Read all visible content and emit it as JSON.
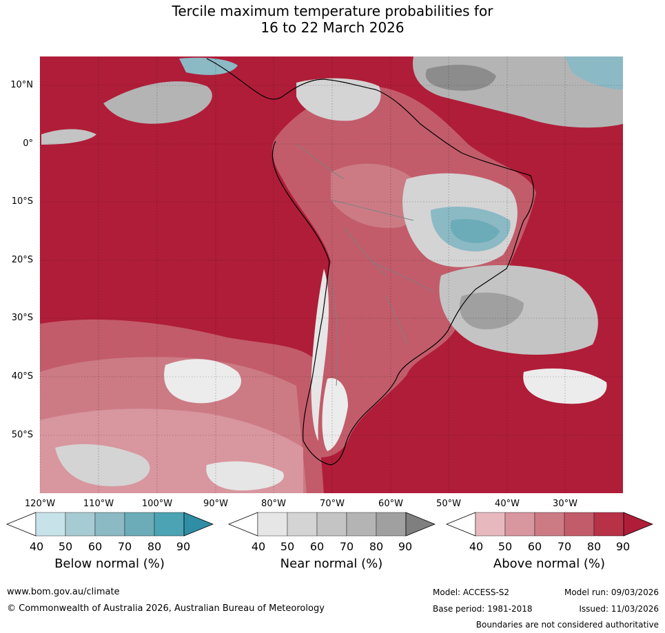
{
  "title": {
    "line1": "Tercile maximum temperature probabilities for",
    "line2": "16 to 22 March 2026"
  },
  "map": {
    "region": "South America",
    "lat_labels": [
      "10°N",
      "0°",
      "10°S",
      "20°S",
      "30°S",
      "40°S",
      "50°S"
    ],
    "lon_labels": [
      "120°W",
      "110°W",
      "100°W",
      "90°W",
      "80°W",
      "70°W",
      "60°W",
      "50°W",
      "40°W",
      "30°W"
    ],
    "grid": true
  },
  "legend": {
    "below": {
      "label": "Below normal (%)",
      "ticks": [
        "40",
        "50",
        "60",
        "70",
        "80",
        "90"
      ],
      "colors": [
        "#ffffff",
        "#c7e2e8",
        "#a7cbd2",
        "#8bb9c4",
        "#6cacb8",
        "#4ba3b3",
        "#2f8ea4"
      ]
    },
    "near": {
      "label": "Near normal (%)",
      "ticks": [
        "40",
        "50",
        "60",
        "70",
        "80",
        "90"
      ],
      "colors": [
        "#ffffff",
        "#e6e6e6",
        "#d4d4d4",
        "#c4c4c4",
        "#b4b4b4",
        "#a0a0a0",
        "#7f7f7f"
      ]
    },
    "above": {
      "label": "Above normal (%)",
      "ticks": [
        "40",
        "50",
        "60",
        "70",
        "80",
        "90"
      ],
      "colors": [
        "#ffffff",
        "#e7b9bf",
        "#d8969f",
        "#cc7b85",
        "#c25c6a",
        "#b83247",
        "#b01d38"
      ]
    }
  },
  "footer": {
    "website": "www.bom.gov.au/climate",
    "copyright": "© Commonwealth of Australia 2026, Australian Bureau of Meteorology",
    "model": "Model: ACCESS-S2",
    "base_period": "Base period: 1981-2018",
    "model_run": "Model run: 09/03/2026",
    "issued": "Issued: 11/03/2026",
    "disclaimer": "Boundaries are not considered authoritative"
  }
}
